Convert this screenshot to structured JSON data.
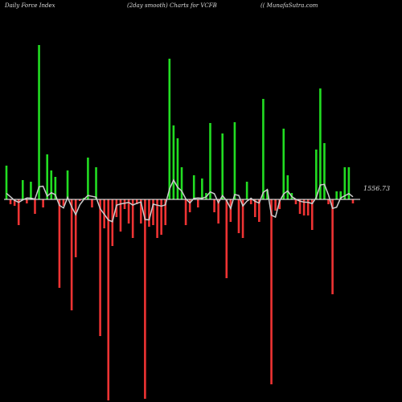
{
  "header": {
    "left": "Daily Force  Index",
    "middle": "(2day smooth) Charts for VCFB",
    "right": "(( MunafaSutra.com"
  },
  "chart_data": {
    "type": "bar",
    "title": "",
    "zero_label": "1556.73",
    "positive_color": "#22dd22",
    "negative_color": "#ee3333",
    "line_color": "#cccccc",
    "baseline_color": "#ffffff",
    "ylim": [
      -250,
      195
    ],
    "values": [
      42,
      -6,
      -8,
      -32,
      24,
      -5,
      22,
      -18,
      192,
      -10,
      56,
      36,
      28,
      -110,
      -8,
      36,
      -138,
      -72,
      -2,
      2,
      52,
      -10,
      40,
      -170,
      -36,
      -250,
      -58,
      -22,
      -40,
      -12,
      -30,
      -48,
      -6,
      -30,
      -248,
      -34,
      -32,
      -48,
      -44,
      -32,
      175,
      92,
      76,
      40,
      -32,
      -16,
      30,
      -10,
      26,
      8,
      95,
      -16,
      -30,
      82,
      -98,
      -28,
      96,
      -42,
      -48,
      22,
      -6,
      -22,
      -28,
      125,
      12,
      -230,
      -14,
      -12,
      88,
      30,
      8,
      -6,
      -18,
      -20,
      -20,
      -38,
      62,
      138,
      70,
      -6,
      -118,
      10,
      10,
      40,
      40,
      -5
    ]
  }
}
